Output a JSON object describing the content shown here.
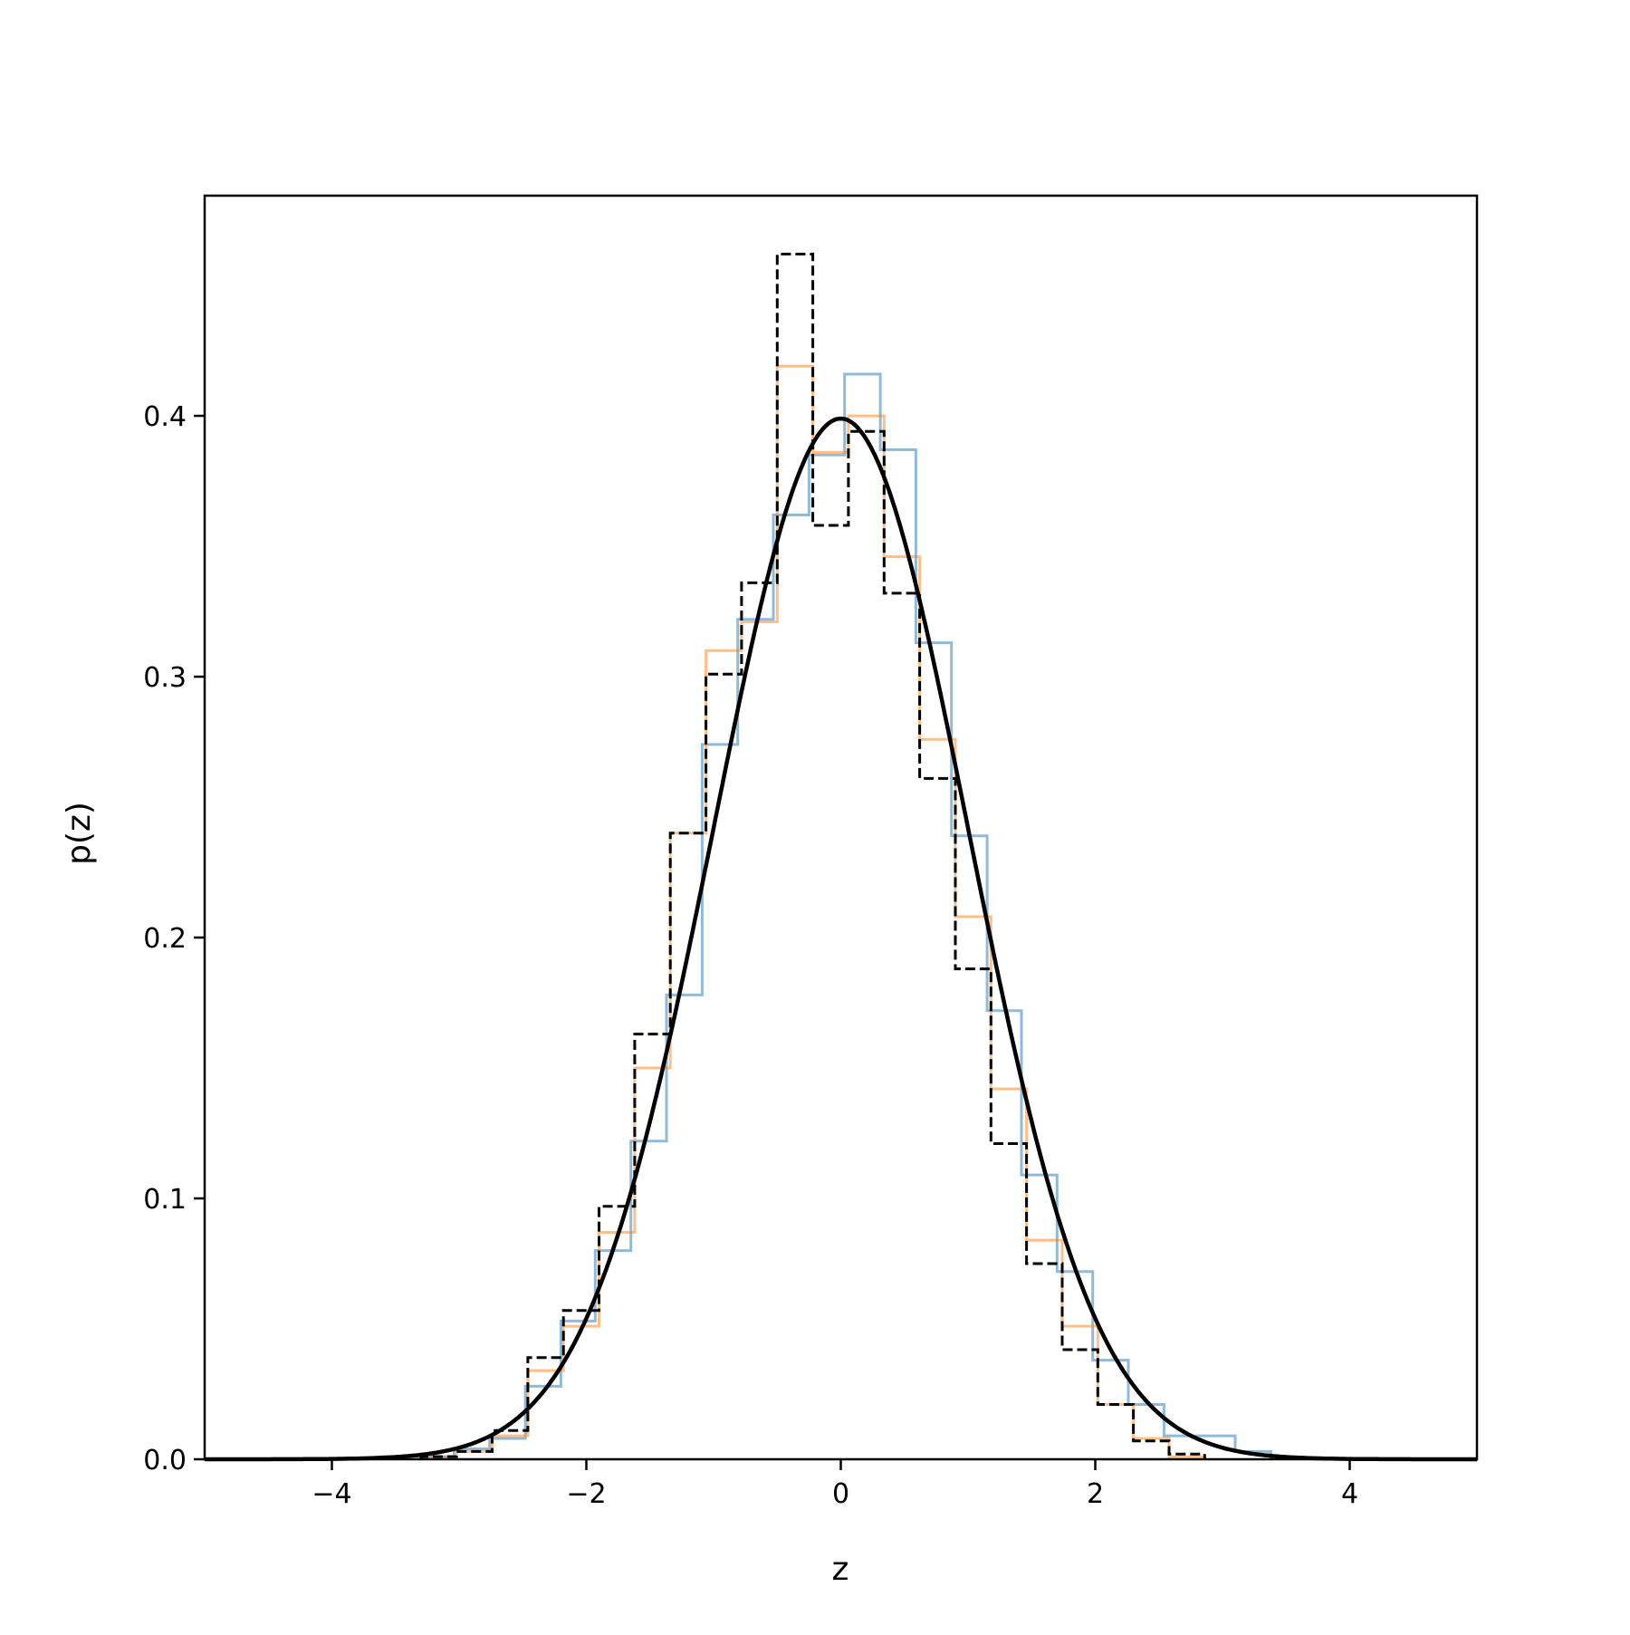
{
  "chart_data": {
    "type": "histogram",
    "xlabel": "z",
    "ylabel": "p(z)",
    "xlim": [
      -5,
      5
    ],
    "ylim": [
      0,
      0.4844
    ],
    "xticks": [
      -4,
      -2,
      0,
      2,
      4
    ],
    "xtick_labels": [
      "−4",
      "−2",
      "0",
      "2",
      "4"
    ],
    "yticks": [
      0.0,
      0.1,
      0.2,
      0.3,
      0.4
    ],
    "ytick_labels": [
      "0.0",
      "0.1",
      "0.2",
      "0.3",
      "0.4"
    ],
    "grid": false,
    "legend": false,
    "series": [
      {
        "style": "step",
        "color": "#1f77b4",
        "opacity": 0.5,
        "bin_edges": [
          -3.6,
          -3.32,
          -3.04,
          -2.76,
          -2.48,
          -2.2,
          -1.93,
          -1.65,
          -1.37,
          -1.09,
          -0.81,
          -0.53,
          -0.25,
          0.03,
          0.31,
          0.59,
          0.87,
          1.15,
          1.42,
          1.7,
          1.98,
          2.26,
          2.54,
          2.82,
          3.1,
          3.38
        ],
        "values": [
          0.001,
          0.001,
          0.004,
          0.008,
          0.028,
          0.053,
          0.08,
          0.122,
          0.178,
          0.274,
          0.322,
          0.362,
          0.385,
          0.416,
          0.387,
          0.313,
          0.239,
          0.172,
          0.109,
          0.072,
          0.038,
          0.021,
          0.009,
          0.009,
          0.003
        ]
      },
      {
        "style": "step",
        "color": "#ff7f0e",
        "opacity": 0.5,
        "bin_edges": [
          -3.3,
          -3.02,
          -2.74,
          -2.46,
          -2.18,
          -1.9,
          -1.62,
          -1.34,
          -1.06,
          -0.78,
          -0.5,
          -0.22,
          0.06,
          0.34,
          0.62,
          0.9,
          1.18,
          1.46,
          1.74,
          2.02,
          2.3,
          2.58,
          2.86
        ],
        "values": [
          0.001,
          0.003,
          0.009,
          0.034,
          0.051,
          0.087,
          0.15,
          0.24,
          0.31,
          0.321,
          0.419,
          0.386,
          0.4,
          0.346,
          0.276,
          0.208,
          0.142,
          0.084,
          0.051,
          0.021,
          0.008,
          0.001
        ]
      },
      {
        "style": "step",
        "color": "#000000",
        "dashed": true,
        "bin_edges": [
          -3.3,
          -3.02,
          -2.74,
          -2.46,
          -2.18,
          -1.9,
          -1.62,
          -1.34,
          -1.06,
          -0.78,
          -0.5,
          -0.22,
          0.06,
          0.34,
          0.62,
          0.9,
          1.18,
          1.46,
          1.74,
          2.02,
          2.3,
          2.58,
          2.86
        ],
        "values": [
          0.001,
          0.003,
          0.011,
          0.039,
          0.057,
          0.097,
          0.163,
          0.24,
          0.301,
          0.336,
          0.462,
          0.358,
          0.394,
          0.332,
          0.261,
          0.188,
          0.121,
          0.075,
          0.042,
          0.021,
          0.007,
          0.002
        ]
      },
      {
        "style": "line",
        "color": "#000000",
        "function": "standard normal pdf",
        "mean": 0,
        "std": 1
      }
    ]
  }
}
